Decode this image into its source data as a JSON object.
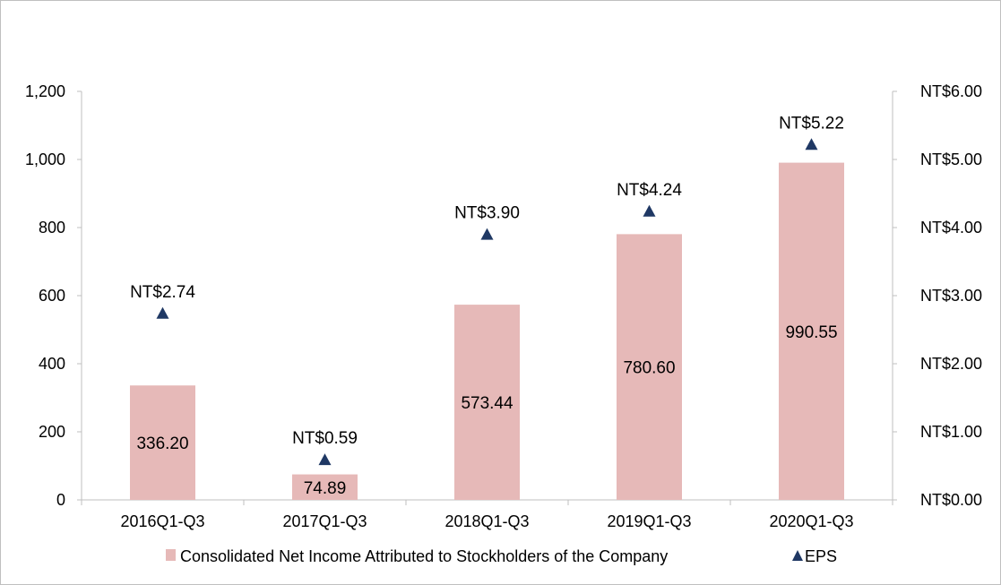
{
  "chart_data": {
    "type": "bar",
    "categories": [
      "2016Q1-Q3",
      "2017Q1-Q3",
      "2018Q1-Q3",
      "2019Q1-Q3",
      "2020Q1-Q3"
    ],
    "series": [
      {
        "name": "Consolidated Net Income Attributed to Stockholders of the Company",
        "type": "bar",
        "axis": "left",
        "values": [
          336.2,
          74.89,
          573.44,
          780.6,
          990.55
        ],
        "labels": [
          "336.20",
          "74.89",
          "573.44",
          "780.60",
          "990.55"
        ],
        "color": "#e6b9b8"
      },
      {
        "name": "EPS",
        "type": "scatter",
        "marker": "triangle",
        "axis": "right",
        "values": [
          2.74,
          0.59,
          3.9,
          4.24,
          5.22
        ],
        "labels": [
          "NT$2.74",
          "NT$0.59",
          "NT$3.90",
          "NT$4.24",
          "NT$5.22"
        ],
        "color": "#1f3864"
      }
    ],
    "y_left": {
      "lim": [
        0,
        1200
      ],
      "ticks": [
        0,
        200,
        400,
        600,
        800,
        1000,
        1200
      ],
      "tick_labels": [
        "0",
        "200",
        "400",
        "600",
        "800",
        "1,000",
        "1,200"
      ]
    },
    "y_right": {
      "lim": [
        0,
        6
      ],
      "ticks": [
        0,
        1,
        2,
        3,
        4,
        5,
        6
      ],
      "tick_labels": [
        "NT$0.00",
        "NT$1.00",
        "NT$2.00",
        "NT$3.00",
        "NT$4.00",
        "NT$5.00",
        "NT$6.00"
      ]
    },
    "grid": false,
    "legend_position": "bottom",
    "title": "",
    "xlabel": "",
    "ylabel": ""
  }
}
